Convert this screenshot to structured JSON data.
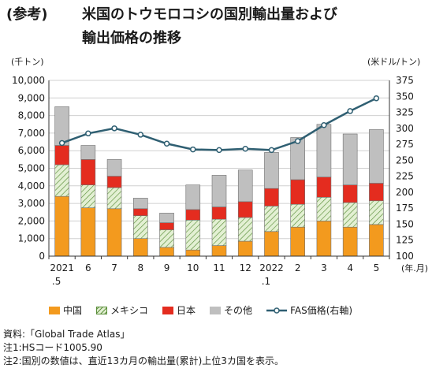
{
  "title": {
    "tag": "(参考)",
    "line1": "米国のトウモロコシの国別輸出量および",
    "line2": "輸出価格の推移"
  },
  "chart_data": {
    "type": "bar",
    "stacked": true,
    "categories": [
      "2021\n.5",
      "6",
      "7",
      "8",
      "9",
      "10",
      "11",
      "12",
      "2022\n.1",
      "2",
      "3",
      "4",
      "5"
    ],
    "x_unit": "(年.月)",
    "y_left": {
      "unit": "(千トン)",
      "min": 0,
      "max": 10000,
      "step": 1000
    },
    "y_right": {
      "unit": "(米ドル/トン)",
      "min": 100,
      "max": 375,
      "step": 25
    },
    "series": [
      {
        "name": "中国",
        "color": "#f39a1e",
        "values": [
          3400,
          2750,
          2700,
          1000,
          500,
          350,
          600,
          850,
          1400,
          1650,
          2000,
          1650,
          1800
        ]
      },
      {
        "name": "メキシコ",
        "color": "#e3f0d3",
        "values": [
          1800,
          1300,
          1200,
          1300,
          1000,
          1700,
          1500,
          1350,
          1450,
          1300,
          1350,
          1400,
          1350
        ]
      },
      {
        "name": "日本",
        "color": "#e42c1f",
        "values": [
          1100,
          1450,
          650,
          400,
          400,
          600,
          700,
          900,
          1000,
          1400,
          1150,
          1000,
          1000
        ]
      },
      {
        "name": "その他",
        "color": "#bfbfbf",
        "values": [
          2200,
          800,
          950,
          600,
          550,
          1400,
          1800,
          1800,
          2050,
          2400,
          3000,
          2900,
          3050
        ]
      }
    ],
    "line": {
      "name": "FAS価格(右軸)",
      "color": "#2f5f72",
      "values": [
        277,
        292,
        300,
        290,
        276,
        267,
        266,
        268,
        266,
        280,
        305,
        327,
        347
      ]
    },
    "grid": true,
    "legend_position": "bottom"
  },
  "notes": [
    "資料:「Global Trade Atlas」",
    "注1:HSコード1005.90",
    "注2:国別の数値は、直近13カ月の輸出量(累計)上位3カ国を表示。"
  ]
}
